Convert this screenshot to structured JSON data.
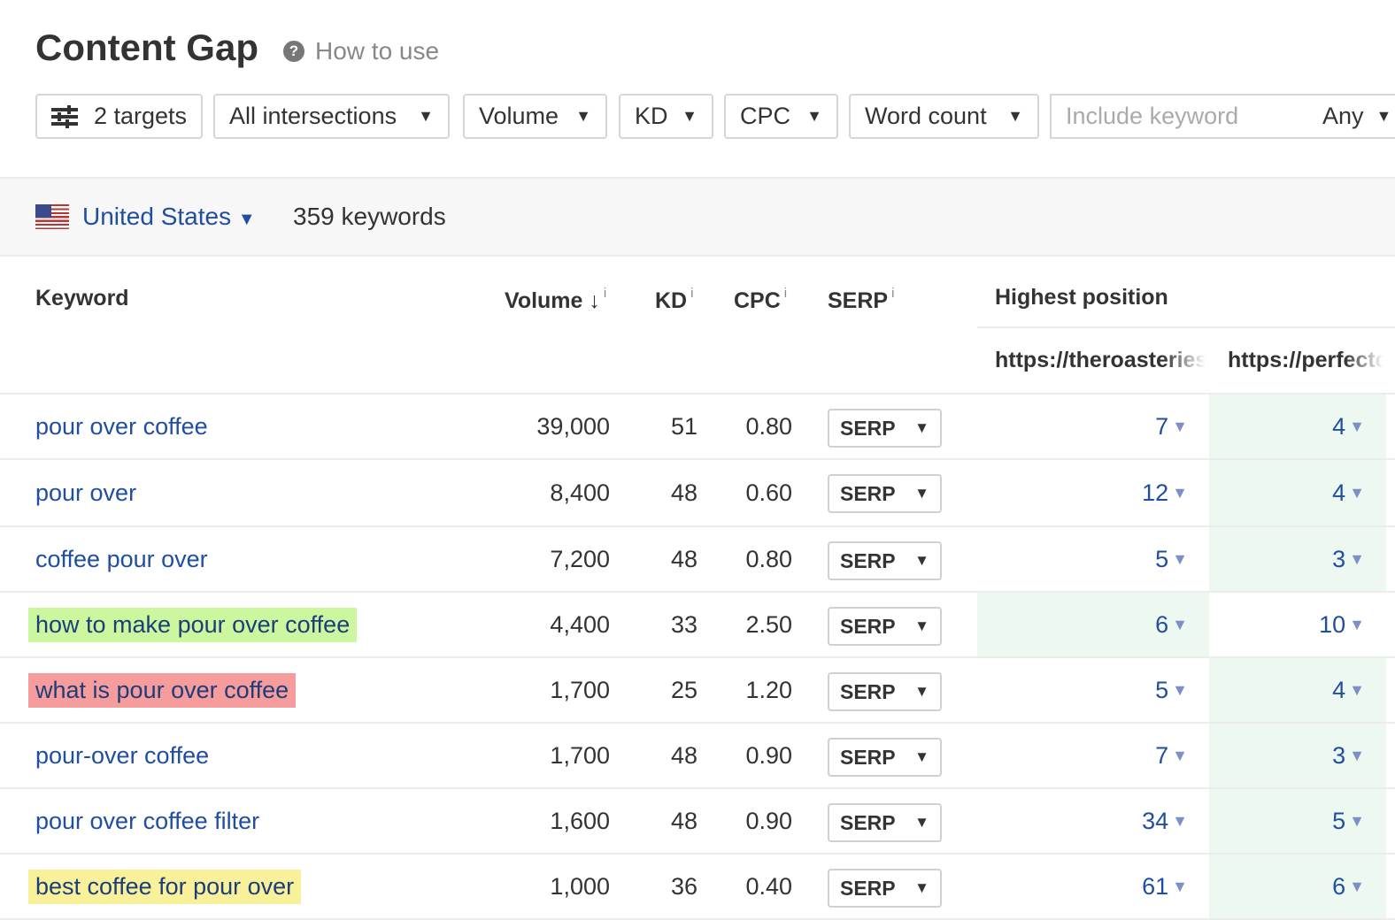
{
  "header": {
    "title": "Content Gap",
    "help_icon": "question-circle-icon",
    "how_to_use": "How to use"
  },
  "filters": {
    "targets": "2 targets",
    "intersections": "All intersections",
    "volume": "Volume",
    "kd": "KD",
    "cpc": "CPC",
    "word_count": "Word count",
    "include_placeholder": "Include keyword",
    "include_mode": "Any"
  },
  "location": {
    "country": "United States",
    "keywords_count": "359 keywords"
  },
  "table": {
    "headers": {
      "keyword": "Keyword",
      "volume": "Volume",
      "sort_icon": "↓",
      "kd": "KD",
      "cpc": "CPC",
      "serp": "SERP",
      "info": "i",
      "highest_position": "Highest position",
      "target1": "https://theroasteries.com",
      "target2": "https://perfectdailygrind.com"
    },
    "target1_visible": "https://theroasterie",
    "target2_visible": "https://perfect",
    "serp_label": "SERP",
    "colors": {
      "green_highlight": "#ccf79f",
      "red_highlight": "#f79c9c",
      "yellow_highlight": "#f8f19a",
      "best_position_cell": "#ecf8f0",
      "link": "#1f4ea3"
    },
    "rows": [
      {
        "keyword": "pour over coffee",
        "volume": "39,000",
        "kd": "51",
        "cpc": "0.80",
        "pos1": "7",
        "pos2": "4",
        "best": 2,
        "highlight": ""
      },
      {
        "keyword": "pour over",
        "volume": "8,400",
        "kd": "48",
        "cpc": "0.60",
        "pos1": "12",
        "pos2": "4",
        "best": 2,
        "highlight": ""
      },
      {
        "keyword": "coffee pour over",
        "volume": "7,200",
        "kd": "48",
        "cpc": "0.80",
        "pos1": "5",
        "pos2": "3",
        "best": 2,
        "highlight": ""
      },
      {
        "keyword": "how to make pour over coffee",
        "volume": "4,400",
        "kd": "33",
        "cpc": "2.50",
        "pos1": "6",
        "pos2": "10",
        "best": 1,
        "highlight": "green"
      },
      {
        "keyword": "what is pour over coffee",
        "volume": "1,700",
        "kd": "25",
        "cpc": "1.20",
        "pos1": "5",
        "pos2": "4",
        "best": 2,
        "highlight": "red"
      },
      {
        "keyword": "pour-over coffee",
        "volume": "1,700",
        "kd": "48",
        "cpc": "0.90",
        "pos1": "7",
        "pos2": "3",
        "best": 2,
        "highlight": ""
      },
      {
        "keyword": "pour over coffee filter",
        "volume": "1,600",
        "kd": "48",
        "cpc": "0.90",
        "pos1": "34",
        "pos2": "5",
        "best": 2,
        "highlight": ""
      },
      {
        "keyword": "best coffee for pour over",
        "volume": "1,000",
        "kd": "36",
        "cpc": "0.40",
        "pos1": "61",
        "pos2": "6",
        "best": 2,
        "highlight": "yellow"
      }
    ]
  }
}
